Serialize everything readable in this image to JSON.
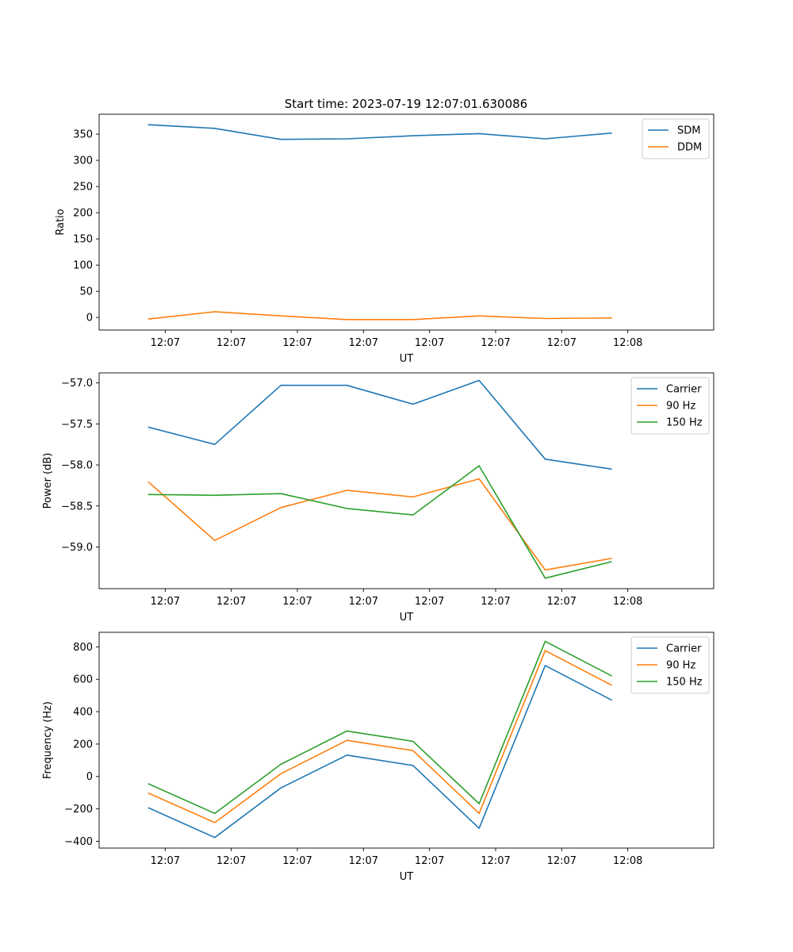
{
  "figure_title": "Start time: 2023-07-19 12:07:01.630086",
  "colors": {
    "c0": "#1f77b4",
    "c1": "#ff7f0e",
    "c2": "#2ca02c"
  },
  "chart_data": [
    {
      "type": "line",
      "xlabel": "UT",
      "ylabel": "Ratio",
      "xtick_labels": [
        "12:07",
        "12:07",
        "12:07",
        "12:07",
        "12:07",
        "12:07",
        "12:07"
      ],
      "xlim": [
        0,
        9.3
      ],
      "x": [
        0.75,
        1.75,
        2.75,
        3.75,
        4.75,
        5.75,
        6.75,
        7.75
      ],
      "ylim": [
        -24,
        388
      ],
      "yticks": [
        0,
        50,
        100,
        150,
        200,
        250,
        300,
        350
      ],
      "ytick_labels": [
        "0",
        "50",
        "100",
        "150",
        "200",
        "250",
        "300",
        "350"
      ],
      "legend_loc": "upper right",
      "series": [
        {
          "name": "SDM",
          "color": "#1f77b4",
          "values": [
            368,
            361,
            340,
            341,
            347,
            351,
            341,
            352
          ]
        },
        {
          "name": "DDM",
          "color": "#ff7f0e",
          "values": [
            -3,
            11,
            3,
            -4,
            -4,
            3,
            -2,
            -1
          ]
        }
      ]
    },
    {
      "type": "line",
      "xlabel": "UT",
      "ylabel": "Power (dB)",
      "xtick_labels": [
        "12:07",
        "12:07",
        "12:07",
        "12:07",
        "12:07",
        "12:07",
        "12:07"
      ],
      "xlim": [
        0,
        9.3
      ],
      "x": [
        0.75,
        1.75,
        2.75,
        3.75,
        4.75,
        5.75,
        6.75,
        7.75
      ],
      "ylim": [
        -59.508,
        -56.878
      ],
      "yticks": [
        -59.0,
        -58.5,
        -58.0,
        -57.5,
        -57.0
      ],
      "ytick_labels": [
        "−59.0",
        "−58.5",
        "−58.0",
        "−57.5",
        "−57.0"
      ],
      "legend_loc": "upper right",
      "series": [
        {
          "name": "Carrier",
          "color": "#1f77b4",
          "values": [
            -57.54,
            -57.75,
            -57.03,
            -57.03,
            -57.26,
            -56.97,
            -57.93,
            -58.05
          ]
        },
        {
          "name": "90 Hz",
          "color": "#ff7f0e",
          "values": [
            -58.21,
            -58.92,
            -58.52,
            -58.31,
            -58.39,
            -58.17,
            -59.28,
            -59.14
          ]
        },
        {
          "name": "150 Hz",
          "color": "#2ca02c",
          "values": [
            -58.36,
            -58.37,
            -58.35,
            -58.53,
            -58.61,
            -58.01,
            -59.38,
            -59.18
          ]
        }
      ]
    },
    {
      "type": "line",
      "xlabel": "UT",
      "ylabel": "Frequency (Hz)",
      "xtick_labels": [
        "12:07",
        "12:07",
        "12:07",
        "12:07",
        "12:07",
        "12:07",
        "12:07",
        "12:08"
      ],
      "xlim": [
        0,
        9.3
      ],
      "x": [
        0.75,
        1.75,
        2.75,
        3.75,
        4.75,
        5.75,
        6.75,
        7.75
      ],
      "ylim": [
        -442,
        890
      ],
      "yticks": [
        -400,
        -200,
        0,
        200,
        400,
        600,
        800
      ],
      "ytick_labels": [
        "−400",
        "−200",
        "0",
        "200",
        "400",
        "600",
        "800"
      ],
      "legend_loc": "upper right",
      "series": [
        {
          "name": "Carrier",
          "color": "#1f77b4",
          "values": [
            -194,
            -377,
            -71,
            132,
            68,
            -320,
            685,
            473
          ]
        },
        {
          "name": "90 Hz",
          "color": "#ff7f0e",
          "values": [
            -103,
            -285,
            17,
            223,
            160,
            -228,
            777,
            565
          ]
        },
        {
          "name": "150 Hz",
          "color": "#2ca02c",
          "values": [
            -46,
            -228,
            75,
            281,
            217,
            -168,
            834,
            622
          ]
        }
      ]
    }
  ],
  "top_xtick_last": "12:08",
  "mid_xtick_last": "12:08"
}
